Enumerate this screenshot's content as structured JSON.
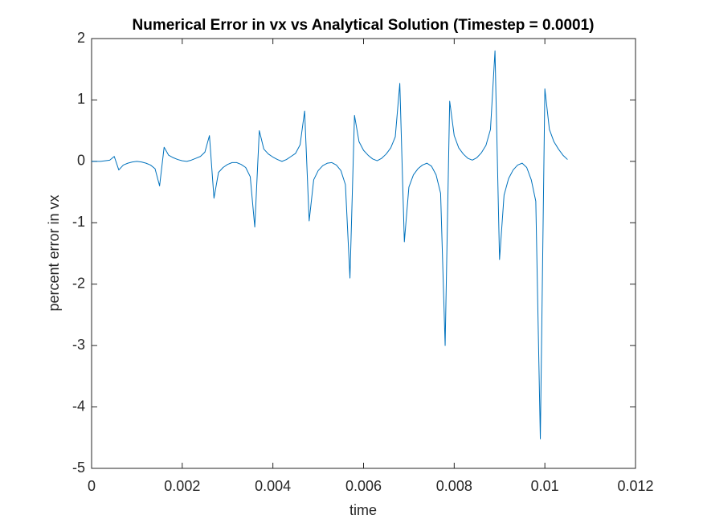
{
  "chart_data": {
    "type": "line",
    "title": "Numerical Error in vx vs Analytical Solution (Timestep = 0.0001)",
    "x_label": "time",
    "y_label": "percent error in vx",
    "x": [
      0,
      0.0001,
      0.0002,
      0.0003,
      0.0004,
      0.0005,
      0.0006,
      0.0007,
      0.0008,
      0.0009,
      0.001,
      0.0011,
      0.0012,
      0.0013,
      0.0014,
      0.0015,
      0.0016,
      0.0017,
      0.0018,
      0.0019,
      0.002,
      0.0021,
      0.0022,
      0.0023,
      0.0024,
      0.0025,
      0.0026,
      0.0027,
      0.0028,
      0.0029,
      0.003,
      0.0031,
      0.0032,
      0.0033,
      0.0034,
      0.0035,
      0.0036,
      0.0037,
      0.0038,
      0.0039,
      0.004,
      0.0041,
      0.0042,
      0.0043,
      0.0044,
      0.0045,
      0.0046,
      0.0047,
      0.0048,
      0.0049,
      0.005,
      0.0051,
      0.0052,
      0.0053,
      0.0054,
      0.0055,
      0.0056,
      0.0057,
      0.0058,
      0.0059,
      0.006,
      0.0061,
      0.0062,
      0.0063,
      0.0064,
      0.0065,
      0.0066,
      0.0067,
      0.0068,
      0.0069,
      0.007,
      0.0071,
      0.0072,
      0.0073,
      0.0074,
      0.0075,
      0.0076,
      0.0077,
      0.0078,
      0.0079,
      0.008,
      0.0081,
      0.0082,
      0.0083,
      0.0084,
      0.0085,
      0.0086,
      0.0087,
      0.0088,
      0.0089,
      0.009,
      0.0091,
      0.0092,
      0.0093,
      0.0094,
      0.0095,
      0.0096,
      0.0097,
      0.0098,
      0.0099,
      0.01,
      0.0101,
      0.0102,
      0.0103,
      0.0104,
      0.0105
    ],
    "series": [
      {
        "color": "#0072bd",
        "values": [
          0,
          0,
          0,
          0.01,
          0.02,
          0.08,
          -0.14,
          -0.06,
          -0.03,
          -0.01,
          0,
          -0.01,
          -0.03,
          -0.06,
          -0.12,
          -0.4,
          0.23,
          0.1,
          0.06,
          0.03,
          0.01,
          0,
          0.02,
          0.05,
          0.08,
          0.15,
          0.42,
          -0.6,
          -0.18,
          -0.1,
          -0.05,
          -0.02,
          -0.02,
          -0.05,
          -0.1,
          -0.25,
          -1.07,
          0.5,
          0.2,
          0.12,
          0.07,
          0.03,
          0,
          0.03,
          0.08,
          0.13,
          0.27,
          0.82,
          -0.97,
          -0.3,
          -0.15,
          -0.07,
          -0.03,
          -0.02,
          -0.06,
          -0.15,
          -0.38,
          -1.9,
          0.75,
          0.32,
          0.18,
          0.1,
          0.04,
          0.01,
          0.05,
          0.12,
          0.22,
          0.4,
          1.27,
          -1.31,
          -0.42,
          -0.22,
          -0.12,
          -0.06,
          -0.03,
          -0.08,
          -0.22,
          -0.52,
          -3.0,
          0.98,
          0.42,
          0.22,
          0.12,
          0.05,
          0.02,
          0.06,
          0.14,
          0.26,
          0.52,
          1.8,
          -1.6,
          -0.55,
          -0.28,
          -0.14,
          -0.06,
          -0.03,
          -0.1,
          -0.3,
          -0.65,
          -4.52,
          1.18,
          0.52,
          0.32,
          0.2,
          0.1,
          0.03
        ]
      }
    ],
    "xlim": [
      0,
      0.012
    ],
    "xticks": [
      0,
      0.002,
      0.004,
      0.006,
      0.008,
      0.01,
      0.012
    ],
    "ylim": [
      -5,
      2
    ],
    "yticks": [
      -5,
      -4,
      -3,
      -2,
      -1,
      0,
      1,
      2
    ],
    "grid": false
  }
}
